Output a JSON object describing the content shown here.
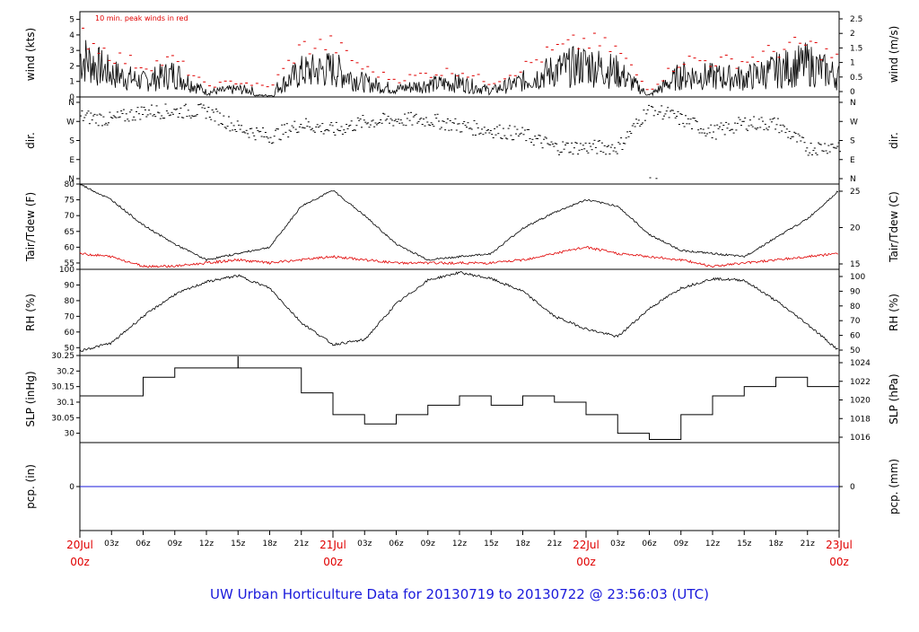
{
  "title": "UW Urban Horticulture Data for 20130719  to  20130722 @ 23:56:03  (UTC)",
  "colors": {
    "main": "#000000",
    "peak": "#e00000",
    "dew": "#e00000",
    "pcp": "#1a1adb",
    "title": "#1a1adb",
    "day": "#e00000"
  },
  "chart_data": [
    {
      "type": "line",
      "ylabel_left": "wind (kts)",
      "ylabel_right": "wind (m/s)",
      "annotation": "10 min. peak winds in red",
      "ylim_left": [
        0,
        5.5
      ],
      "yticks_left": [
        0,
        1,
        2,
        3,
        4,
        5
      ],
      "yticks_right": [
        0,
        0.5,
        1,
        1.5,
        2,
        2.5
      ],
      "x_hours": [
        0,
        3,
        6,
        9,
        12,
        15,
        18,
        21,
        24,
        27,
        30,
        33,
        36,
        39,
        42,
        45,
        48,
        51,
        54,
        57,
        60,
        63,
        66,
        69,
        72
      ],
      "series": [
        {
          "role": "wind",
          "values": [
            2.6,
            1.5,
            1.0,
            1.5,
            0.3,
            0.5,
            0.3,
            1.6,
            1.8,
            0.9,
            0.5,
            0.8,
            0.9,
            0.4,
            1.0,
            1.7,
            2.1,
            1.6,
            0.1,
            1.4,
            1.3,
            1.2,
            1.7,
            2.1,
            1.3
          ]
        },
        {
          "role": "peak",
          "values": [
            4.1,
            2.7,
            2.0,
            2.4,
            0.7,
            1.0,
            0.6,
            3.2,
            3.4,
            1.8,
            1.1,
            1.5,
            1.7,
            0.9,
            1.9,
            3.0,
            3.6,
            3.0,
            0.4,
            2.4,
            2.3,
            2.3,
            3.0,
            3.4,
            2.4
          ]
        }
      ]
    },
    {
      "type": "scatter",
      "ylabel_left": "dir.",
      "ylabel_right": "dir.",
      "yticks_left": [
        "N",
        "E",
        "S",
        "W",
        "N"
      ],
      "yticks_right": [
        "N",
        "E",
        "S",
        "W",
        "N"
      ],
      "ylim_left": [
        0,
        360
      ],
      "x_hours": [
        0,
        3,
        6,
        9,
        12,
        15,
        18,
        21,
        24,
        27,
        30,
        33,
        36,
        39,
        42,
        45,
        48,
        51,
        54,
        57,
        60,
        63,
        66,
        69,
        72
      ],
      "series": [
        {
          "role": "direction",
          "values": [
            295,
            280,
            320,
            320,
            320,
            240,
            200,
            260,
            230,
            270,
            280,
            280,
            250,
            230,
            210,
            150,
            150,
            150,
            340,
            280,
            220,
            265,
            260,
            145,
            160
          ]
        }
      ]
    },
    {
      "type": "line",
      "ylabel_left": "Tair/Tdew (F)",
      "ylabel_right": "Tair/Tdew (C)",
      "ylim_left": [
        53,
        80
      ],
      "yticks_left": [
        55,
        60,
        65,
        70,
        75,
        80
      ],
      "yticks_right": [
        15,
        20,
        25
      ],
      "x_hours": [
        0,
        3,
        6,
        9,
        12,
        15,
        18,
        21,
        24,
        27,
        30,
        33,
        36,
        39,
        42,
        45,
        48,
        51,
        54,
        57,
        60,
        63,
        66,
        69,
        72
      ],
      "series": [
        {
          "role": "Tair",
          "values": [
            80,
            75,
            67,
            61,
            56,
            58,
            60,
            73,
            78,
            70,
            61,
            56,
            57,
            58,
            66,
            71,
            75,
            73,
            64,
            59,
            58,
            57,
            63,
            69,
            78
          ]
        },
        {
          "role": "Tdew",
          "values": [
            58,
            57,
            54,
            54,
            55,
            56,
            55,
            56,
            57,
            56,
            55,
            55,
            55,
            55,
            56,
            58,
            60,
            58,
            57,
            56,
            54,
            55,
            56,
            57,
            58
          ]
        }
      ]
    },
    {
      "type": "line",
      "ylabel_left": "RH (%)",
      "ylabel_right": "RH (%)",
      "ylim_left": [
        45,
        100
      ],
      "yticks_left": [
        50,
        60,
        70,
        80,
        90,
        100
      ],
      "yticks_right": [
        50,
        60,
        70,
        80,
        90,
        100
      ],
      "x_hours": [
        0,
        3,
        6,
        9,
        12,
        15,
        18,
        21,
        24,
        27,
        30,
        33,
        36,
        39,
        42,
        45,
        48,
        51,
        54,
        57,
        60,
        63,
        66,
        69,
        72
      ],
      "series": [
        {
          "role": "RH",
          "values": [
            48,
            53,
            70,
            84,
            92,
            96,
            88,
            66,
            52,
            55,
            78,
            93,
            98,
            94,
            86,
            70,
            62,
            57,
            75,
            88,
            94,
            93,
            80,
            65,
            48
          ]
        }
      ]
    },
    {
      "type": "line",
      "step": true,
      "ylabel_left": "SLP (inHg)",
      "ylabel_right": "SLP (hPa)",
      "ylim_left": [
        29.97,
        30.25
      ],
      "yticks_left": [
        30.0,
        30.05,
        30.1,
        30.15,
        30.2,
        30.25
      ],
      "yticks_right": [
        1016,
        1018,
        1020,
        1022,
        1024
      ],
      "x_hours": [
        0,
        3,
        6,
        9,
        12,
        15,
        18,
        21,
        24,
        27,
        30,
        33,
        36,
        39,
        42,
        45,
        48,
        51,
        54,
        57,
        60,
        63,
        66,
        69,
        72
      ],
      "series": [
        {
          "role": "SLP",
          "values": [
            30.12,
            30.12,
            30.18,
            30.21,
            30.21,
            30.21,
            30.21,
            30.13,
            30.06,
            30.03,
            30.06,
            30.09,
            30.12,
            30.09,
            30.12,
            30.1,
            30.06,
            30.0,
            29.98,
            30.06,
            30.12,
            30.15,
            30.18,
            30.15,
            30.09
          ]
        }
      ]
    },
    {
      "type": "line",
      "ylabel_left": "pcp. (in)",
      "ylabel_right": "pcp. (mm)",
      "ylim_left": [
        -0.1,
        0.1
      ],
      "yticks_left": [
        0
      ],
      "yticks_right": [
        0
      ],
      "x_hours": [
        0,
        72
      ],
      "series": [
        {
          "role": "pcp",
          "values": [
            0,
            0
          ]
        }
      ]
    }
  ],
  "x_axis": {
    "tick_labels": [
      "03z",
      "06z",
      "09z",
      "12z",
      "15z",
      "18z",
      "21z",
      "03z",
      "06z",
      "09z",
      "12z",
      "15z",
      "18z",
      "21z",
      "03z",
      "06z",
      "09z",
      "12z",
      "15z",
      "18z",
      "21z"
    ],
    "tick_hours": [
      3,
      6,
      9,
      12,
      15,
      18,
      21,
      27,
      30,
      33,
      36,
      39,
      42,
      45,
      51,
      54,
      57,
      60,
      63,
      66,
      69
    ],
    "day_labels": [
      {
        "date": "20Jul",
        "hour": "00z",
        "at": 0
      },
      {
        "date": "21Jul",
        "hour": "00z",
        "at": 24
      },
      {
        "date": "22Jul",
        "hour": "00z",
        "at": 48
      },
      {
        "date": "23Jul",
        "hour": "00z",
        "at": 72
      }
    ]
  }
}
